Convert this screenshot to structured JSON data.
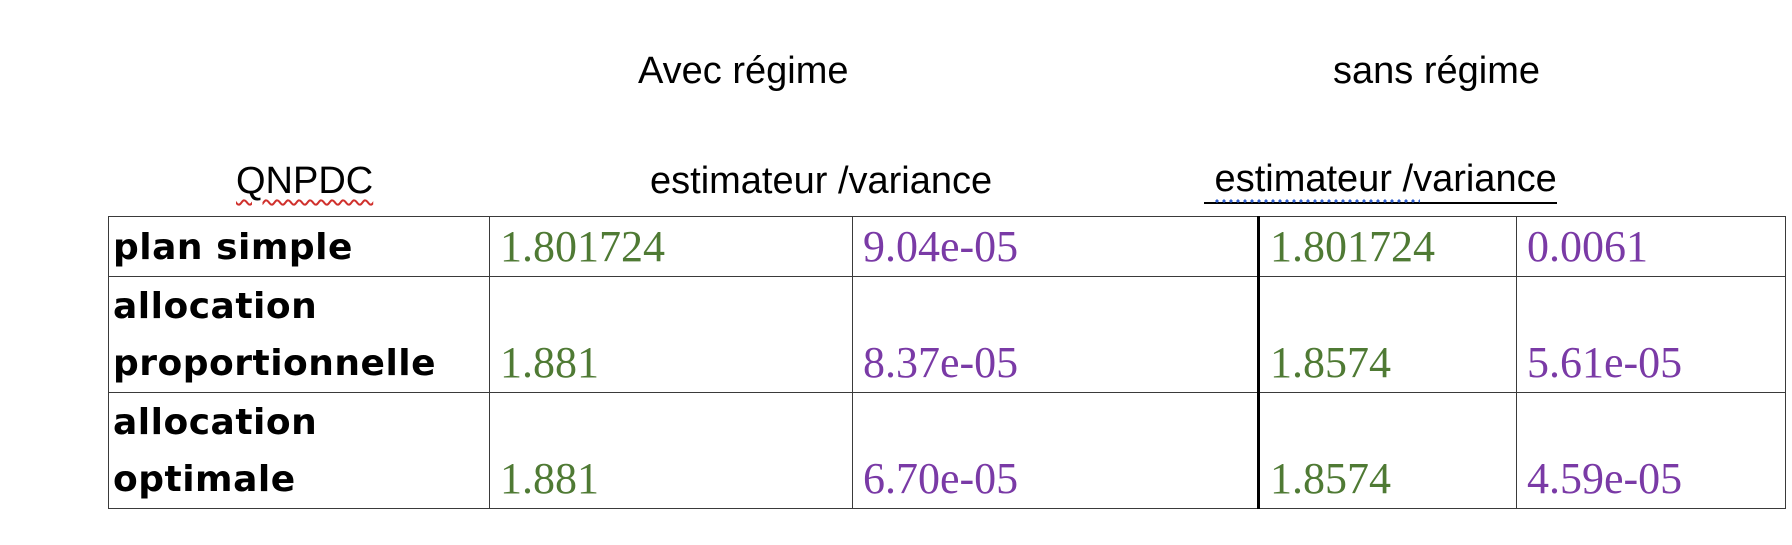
{
  "headers": {
    "avec_regime": "Avec régime",
    "sans_regime": "sans régime",
    "qnpdc": "QNPDC",
    "estimateur_variance_1": "estimateur /variance",
    "estimateur_variance_2": " estimateur /variance"
  },
  "table": {
    "rows": [
      {
        "label": "plan simple",
        "avec_estimateur": "1.801724",
        "avec_variance": "9.04e-05",
        "sans_estimateur": "1.801724",
        "sans_variance": "0.0061"
      },
      {
        "label_line1": "allocation",
        "label_line2": "proportionnelle",
        "avec_estimateur": "1.881",
        "avec_variance": "8.37e-05",
        "sans_estimateur": "1.8574",
        "sans_variance": "5.61e-05"
      },
      {
        "label_line1": "allocation",
        "label_line2": "optimale",
        "avec_estimateur": "1.881",
        "avec_variance": "6.70e-05",
        "sans_estimateur": "1.8574",
        "sans_variance": "4.59e-05"
      }
    ]
  },
  "colors": {
    "estimateur_text": "#4f7a34",
    "variance_text": "#7a3aa6",
    "spellcheck_underline": "#d0312d",
    "grammar_underline": "#2f5fd0"
  }
}
